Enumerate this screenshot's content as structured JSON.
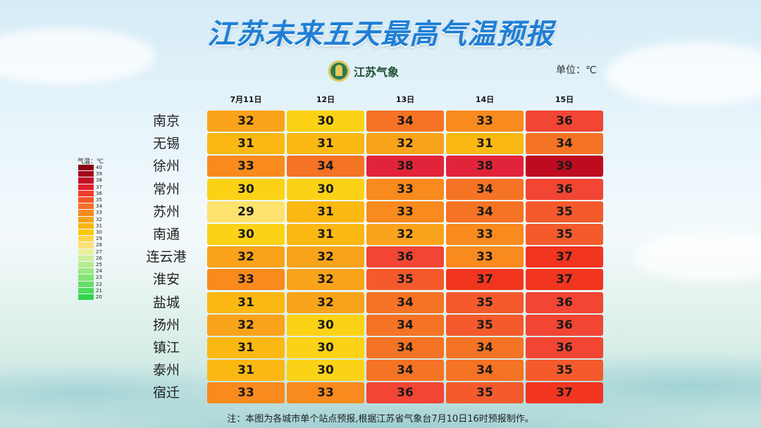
{
  "title": "江苏未来五天最高气温预报",
  "logo_text": "江苏气象",
  "unit": "单位：℃",
  "columns": [
    "7月11日",
    "12日",
    "13日",
    "14日",
    "15日"
  ],
  "cities": [
    "南京",
    "无锡",
    "徐州",
    "常州",
    "苏州",
    "南通",
    "连云港",
    "淮安",
    "盐城",
    "扬州",
    "镇江",
    "泰州",
    "宿迁"
  ],
  "temps": [
    [
      "32",
      "30",
      "34",
      "33",
      "36"
    ],
    [
      "31",
      "31",
      "32",
      "31",
      "34"
    ],
    [
      "33",
      "34",
      "38",
      "38",
      "39"
    ],
    [
      "30",
      "30",
      "33",
      "34",
      "36"
    ],
    [
      "29",
      "31",
      "33",
      "34",
      "35"
    ],
    [
      "30",
      "31",
      "32",
      "33",
      "35"
    ],
    [
      "32",
      "32",
      "36",
      "33",
      "37"
    ],
    [
      "33",
      "32",
      "35",
      "37",
      "37"
    ],
    [
      "31",
      "32",
      "34",
      "35",
      "36"
    ],
    [
      "32",
      "30",
      "34",
      "35",
      "36"
    ],
    [
      "31",
      "30",
      "34",
      "34",
      "36"
    ],
    [
      "31",
      "30",
      "34",
      "34",
      "35"
    ],
    [
      "33",
      "33",
      "36",
      "35",
      "37"
    ]
  ],
  "legend": {
    "title": "气温：℃",
    "levels": [
      "40",
      "39",
      "38",
      "37",
      "36",
      "35",
      "34",
      "33",
      "32",
      "31",
      "30",
      "29",
      "28",
      "27",
      "26",
      "25",
      "24",
      "23",
      "22",
      "21",
      "20"
    ],
    "colors": [
      "#8b0012",
      "#a3051b",
      "#c20f25",
      "#e0202a",
      "#f03a2a",
      "#f4562a",
      "#f5702a",
      "#f68a1e",
      "#f8a11a",
      "#f9b512",
      "#fbc80a",
      "#fcd64a",
      "#fde27a",
      "#eaf09a",
      "#cdefa0",
      "#b4ec92",
      "#9be883",
      "#82e474",
      "#66df66",
      "#4cdb5a",
      "#2fd44c"
    ]
  },
  "cell_colors": {
    "29": "#fde26e",
    "30": "#fcd216",
    "31": "#fbb812",
    "32": "#f9a31a",
    "33": "#f88a1e",
    "34": "#f57324",
    "35": "#f45a2c",
    "36": "#f24534",
    "37": "#f1351e",
    "38": "#e2243a",
    "39": "#bf0b1f"
  },
  "note": "注：本图为各城市单个站点预报,根据江苏省气象台7月10日16时预报制作。"
}
